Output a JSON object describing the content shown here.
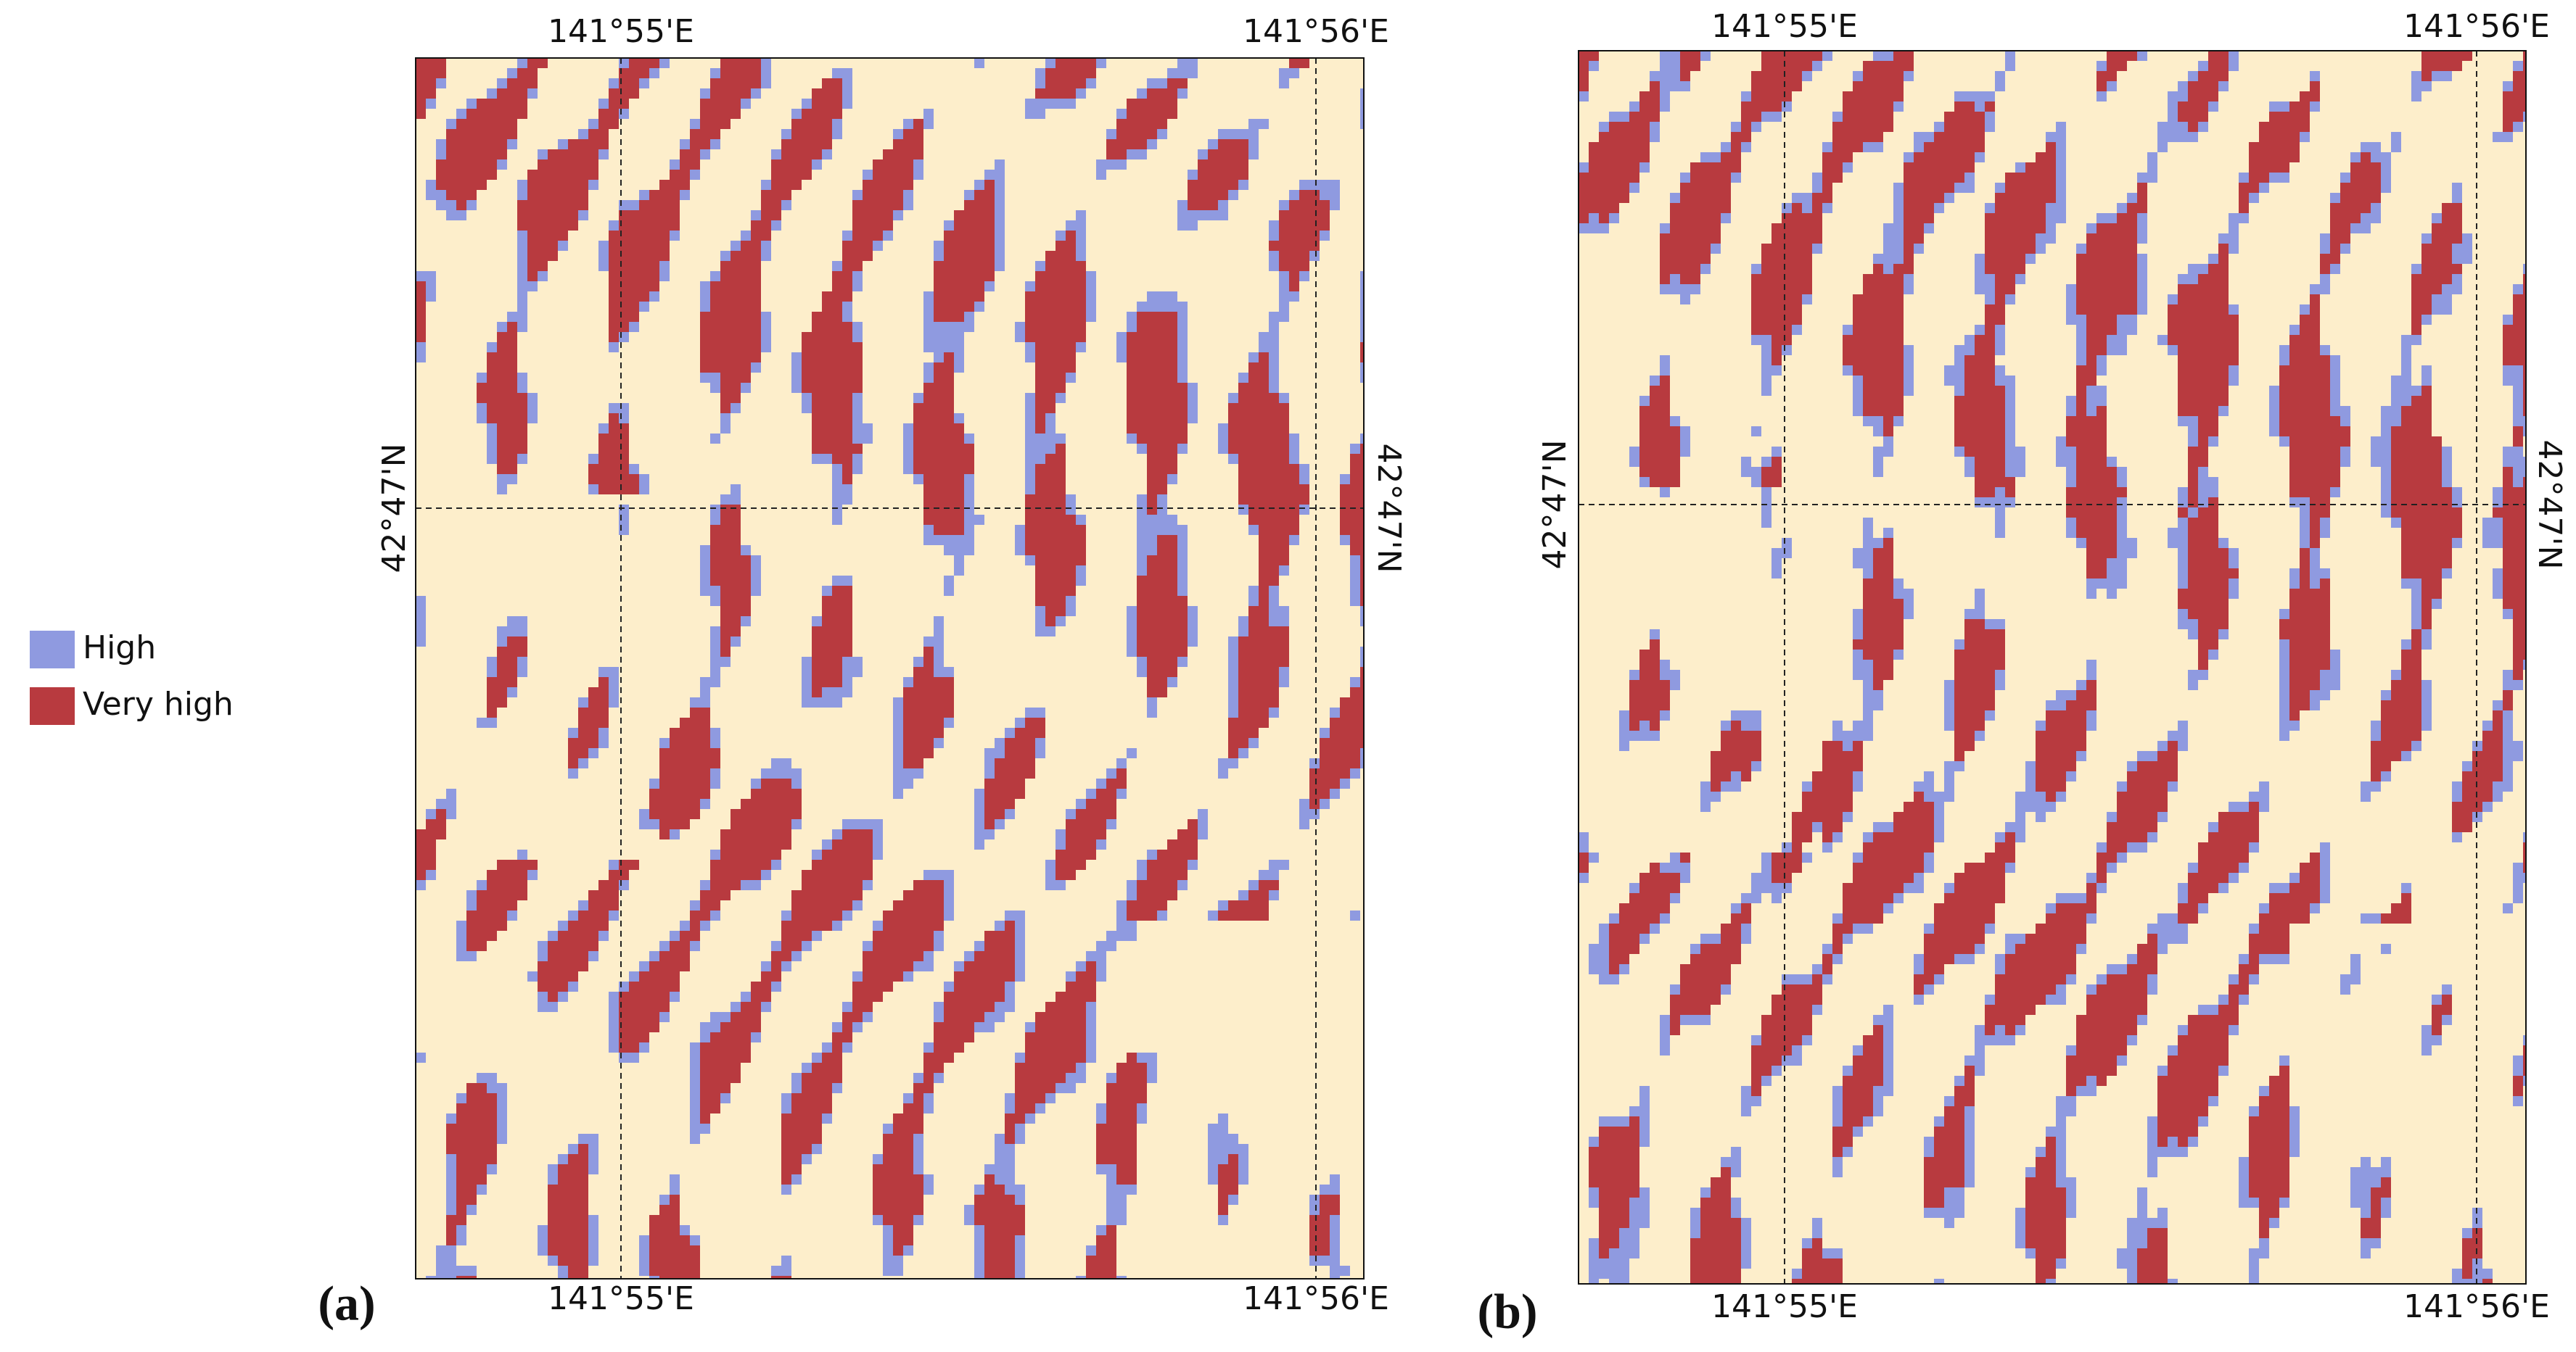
{
  "legend": {
    "items": [
      {
        "label": "High",
        "color": "#8f9ae0"
      },
      {
        "label": "Very high",
        "color": "#b83a3f"
      }
    ]
  },
  "panels": [
    {
      "label": "(a)",
      "top_labels": [
        "141°55'E",
        "141°56'E"
      ],
      "bottom_labels": [
        "141°55'E",
        "141°56'E"
      ],
      "left_label": "42°47'N",
      "right_label": "42°47'N"
    },
    {
      "label": "(b)",
      "top_labels": [
        "141°55'E",
        "141°56'E"
      ],
      "bottom_labels": [
        "141°55'E",
        "141°56'E"
      ],
      "left_label": "42°47'N",
      "right_label": "42°47'N"
    }
  ]
}
